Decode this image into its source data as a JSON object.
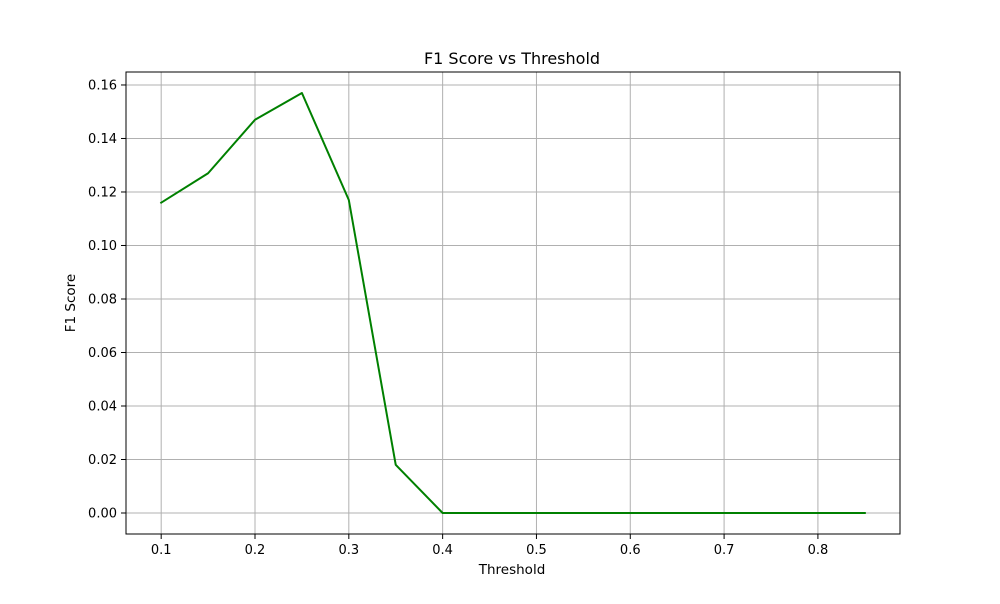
{
  "chart_data": {
    "type": "line",
    "title": "F1 Score vs Threshold",
    "xlabel": "Threshold",
    "ylabel": "F1 Score",
    "xlim": [
      0.0625,
      0.8875
    ],
    "ylim": [
      -0.00785,
      0.16485
    ],
    "xticks": [
      0.1,
      0.2,
      0.3,
      0.4,
      0.5,
      0.6,
      0.7,
      0.8
    ],
    "xtick_labels": [
      "0.1",
      "0.2",
      "0.3",
      "0.4",
      "0.5",
      "0.6",
      "0.7",
      "0.8"
    ],
    "yticks": [
      0.0,
      0.02,
      0.04,
      0.06,
      0.08,
      0.1,
      0.12,
      0.14,
      0.16
    ],
    "ytick_labels": [
      "0.00",
      "0.02",
      "0.04",
      "0.06",
      "0.08",
      "0.10",
      "0.12",
      "0.14",
      "0.16"
    ],
    "grid": true,
    "series": [
      {
        "color": "#008000",
        "x": [
          0.1,
          0.15,
          0.2,
          0.25,
          0.3,
          0.35,
          0.4,
          0.45,
          0.5,
          0.55,
          0.6,
          0.65,
          0.7,
          0.75,
          0.8,
          0.85
        ],
        "values": [
          0.116,
          0.127,
          0.147,
          0.157,
          0.117,
          0.018,
          0.0,
          0.0,
          0.0,
          0.0,
          0.0,
          0.0,
          0.0,
          0.0,
          0.0,
          0.0
        ]
      }
    ]
  }
}
